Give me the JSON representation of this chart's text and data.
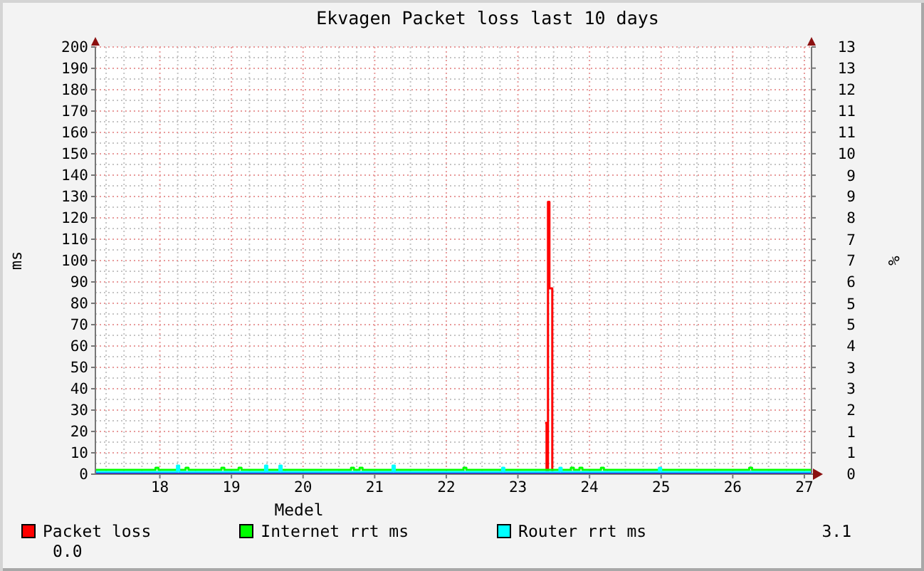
{
  "chart_data": {
    "type": "step",
    "title": "Ekvagen Packet loss last 10 days",
    "ylabel": "ms",
    "y2label": "%",
    "annotations": [
      "Medel",
      "3.1",
      "0.0"
    ],
    "xlim": [
      17.1,
      27.1
    ],
    "xticks": [
      18,
      19,
      20,
      21,
      22,
      23,
      24,
      25,
      26,
      27
    ],
    "ylim": [
      0,
      200
    ],
    "yticks": [
      0,
      10,
      20,
      30,
      40,
      50,
      60,
      70,
      80,
      90,
      100,
      110,
      120,
      130,
      140,
      150,
      160,
      170,
      180,
      190,
      200
    ],
    "y2lim": [
      0,
      13.33
    ],
    "y2ticks": [
      0,
      {
        "value": 0.67,
        "label": "1"
      },
      {
        "value": 1.33,
        "label": "1"
      },
      2,
      {
        "value": 2.67,
        "label": "3"
      },
      {
        "value": 3.33,
        "label": "3"
      },
      4,
      {
        "value": 4.67,
        "label": "5"
      },
      {
        "value": 5.33,
        "label": "5"
      },
      6,
      {
        "value": 6.67,
        "label": "7"
      },
      {
        "value": 7.33,
        "label": "7"
      },
      8,
      {
        "value": 8.67,
        "label": "9"
      },
      {
        "value": 9.33,
        "label": "9"
      },
      10,
      {
        "value": 10.67,
        "label": "11"
      },
      {
        "value": 11.33,
        "label": "11"
      },
      12,
      {
        "value": 12.67,
        "label": "13"
      },
      {
        "value": 13.33,
        "label": "13"
      }
    ],
    "grid": true,
    "legend": "bottom",
    "series": [
      {
        "name": "Packet loss",
        "color": "#ff0000",
        "axis": "y2",
        "x": [
          23.38,
          23.4,
          23.42,
          23.44,
          23.48
        ],
        "values": [
          1.6,
          0,
          8.5,
          5.8,
          0
        ]
      },
      {
        "name": "Internet rrt ms",
        "color": "#00ff00",
        "x": [
          17.1,
          17.94,
          17.98,
          18.36,
          18.4,
          18.86,
          18.9,
          19.1,
          19.14,
          20.67,
          20.71,
          20.79,
          20.83,
          22.24,
          22.28,
          23.74,
          23.78,
          23.86,
          23.9,
          24.16,
          24.2,
          26.23,
          26.27,
          27.1
        ],
        "values": [
          2,
          3,
          2,
          3,
          2,
          3,
          2,
          3,
          2,
          3,
          2,
          3,
          2,
          3,
          2,
          3,
          2,
          3,
          2,
          3,
          2,
          3,
          2,
          2
        ]
      },
      {
        "name": "Router rrt ms",
        "color": "#00ffff",
        "x": [
          17.1,
          18.24,
          18.27,
          19.47,
          19.5,
          19.67,
          19.7,
          21.25,
          21.28,
          22.78,
          22.81,
          23.58,
          23.61,
          24.97,
          25.0,
          27.1
        ],
        "values": [
          1,
          4,
          1,
          4,
          1,
          4,
          1,
          4,
          1,
          3,
          1,
          3,
          1,
          3,
          1,
          1
        ]
      },
      {
        "color": "#0000ff",
        "x": [
          17.1,
          27.1
        ],
        "values": [
          0,
          0
        ]
      }
    ]
  }
}
